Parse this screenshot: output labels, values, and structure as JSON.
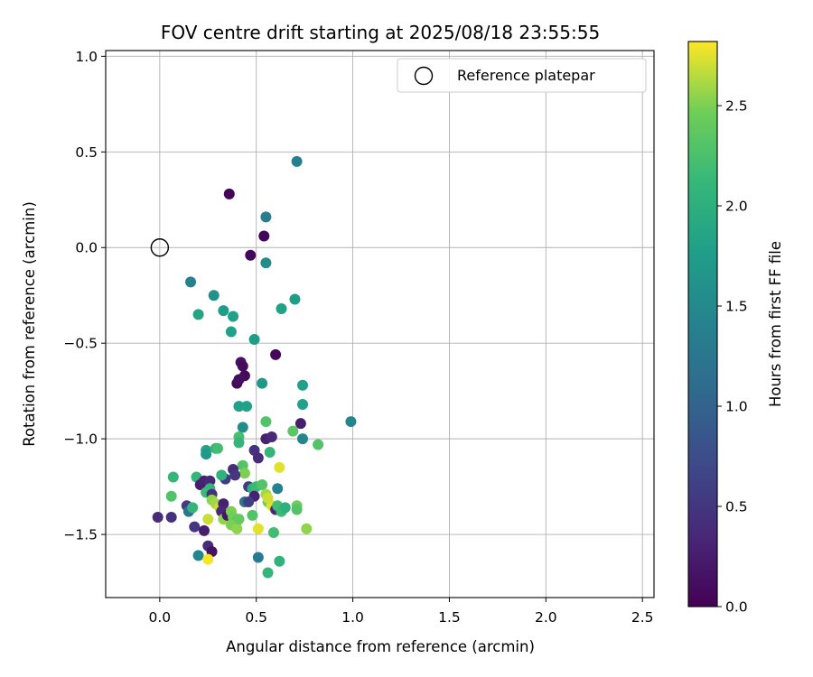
{
  "chart_data": {
    "type": "scatter",
    "title": "FOV centre drift starting at 2025/08/18 23:55:55",
    "xlabel": "Angular distance from reference (arcmin)",
    "ylabel": "Rotation from reference (arcmin)",
    "xlim": [
      -0.28,
      2.56
    ],
    "ylim": [
      -1.83,
      1.03
    ],
    "xticks": [
      0.0,
      0.5,
      1.0,
      1.5,
      2.0,
      2.5
    ],
    "xtick_labels": [
      "0.0",
      "0.5",
      "1.0",
      "1.5",
      "2.0",
      "2.5"
    ],
    "yticks": [
      1.0,
      0.5,
      0.0,
      -0.5,
      -1.0,
      -1.5
    ],
    "ytick_labels": [
      "1.0",
      "0.5",
      "0.0",
      "−0.5",
      "−1.0",
      "−1.5"
    ],
    "grid": true,
    "legend": {
      "placement": "top-right",
      "entries": [
        "Reference platepar"
      ]
    },
    "reference_point": {
      "x": 0.0,
      "y": 0.0,
      "label": "Reference platepar"
    },
    "colorbar": {
      "label": "Hours from first FF file",
      "range": [
        0.0,
        2.82
      ],
      "ticks": [
        0.0,
        0.5,
        1.0,
        1.5,
        2.0,
        2.5
      ],
      "tick_labels": [
        "0.0",
        "0.5",
        "1.0",
        "1.5",
        "2.0",
        "2.5"
      ],
      "colormap": "viridis"
    },
    "points": [
      {
        "x": 0.36,
        "y": 0.28,
        "h": 0.03
      },
      {
        "x": 0.54,
        "y": 0.06,
        "h": 0.05
      },
      {
        "x": 0.47,
        "y": -0.04,
        "h": 0.05
      },
      {
        "x": 0.42,
        "y": -0.6,
        "h": 0.15
      },
      {
        "x": 0.43,
        "y": -0.62,
        "h": 0.1
      },
      {
        "x": 0.6,
        "y": -0.56,
        "h": 0.05
      },
      {
        "x": 0.44,
        "y": -0.67,
        "h": 0.08
      },
      {
        "x": 0.4,
        "y": -0.71,
        "h": 0.05
      },
      {
        "x": 0.41,
        "y": -0.69,
        "h": 0.12
      },
      {
        "x": 0.71,
        "y": 0.45,
        "h": 1.4
      },
      {
        "x": 0.55,
        "y": 0.16,
        "h": 1.35
      },
      {
        "x": 0.55,
        "y": -0.08,
        "h": 1.55
      },
      {
        "x": 0.16,
        "y": -0.18,
        "h": 1.4
      },
      {
        "x": 0.28,
        "y": -0.25,
        "h": 1.6
      },
      {
        "x": 0.33,
        "y": -0.33,
        "h": 1.75
      },
      {
        "x": 0.38,
        "y": -0.36,
        "h": 1.8
      },
      {
        "x": 0.37,
        "y": -0.44,
        "h": 1.8
      },
      {
        "x": 0.2,
        "y": -0.35,
        "h": 1.85
      },
      {
        "x": 0.7,
        "y": -0.27,
        "h": 1.75
      },
      {
        "x": 0.63,
        "y": -0.32,
        "h": 1.8
      },
      {
        "x": 0.49,
        "y": -0.48,
        "h": 1.75
      },
      {
        "x": 0.53,
        "y": -0.71,
        "h": 1.7
      },
      {
        "x": 0.74,
        "y": -0.72,
        "h": 1.8
      },
      {
        "x": 0.74,
        "y": -0.82,
        "h": 1.8
      },
      {
        "x": 0.41,
        "y": -0.83,
        "h": 1.8
      },
      {
        "x": 0.45,
        "y": -0.83,
        "h": 1.8
      },
      {
        "x": 0.99,
        "y": -0.91,
        "h": 1.45
      },
      {
        "x": 0.73,
        "y": -0.92,
        "h": 0.25
      },
      {
        "x": 0.43,
        "y": -0.94,
        "h": 1.55
      },
      {
        "x": 0.55,
        "y": -0.91,
        "h": 2.3
      },
      {
        "x": 0.69,
        "y": -0.96,
        "h": 2.35
      },
      {
        "x": 0.74,
        "y": -1.0,
        "h": 1.45
      },
      {
        "x": 0.82,
        "y": -1.03,
        "h": 2.3
      },
      {
        "x": 0.55,
        "y": -1.0,
        "h": 0.3
      },
      {
        "x": 0.58,
        "y": -0.99,
        "h": 0.35
      },
      {
        "x": 0.41,
        "y": -0.99,
        "h": 2.25
      },
      {
        "x": 0.41,
        "y": -1.02,
        "h": 2.1
      },
      {
        "x": 0.24,
        "y": -1.06,
        "h": 1.85
      },
      {
        "x": 0.24,
        "y": -1.08,
        "h": 1.7
      },
      {
        "x": 0.29,
        "y": -1.05,
        "h": 2.05
      },
      {
        "x": 0.3,
        "y": -1.05,
        "h": 2.2
      },
      {
        "x": 0.49,
        "y": -1.06,
        "h": 0.45
      },
      {
        "x": 0.51,
        "y": -1.1,
        "h": 0.4
      },
      {
        "x": 0.57,
        "y": -1.07,
        "h": 2.1
      },
      {
        "x": 0.62,
        "y": -1.15,
        "h": 2.75
      },
      {
        "x": 0.43,
        "y": -1.14,
        "h": 2.3
      },
      {
        "x": 0.44,
        "y": -1.18,
        "h": 2.5
      },
      {
        "x": 0.38,
        "y": -1.16,
        "h": 0.4
      },
      {
        "x": 0.39,
        "y": -1.19,
        "h": 0.5
      },
      {
        "x": 0.34,
        "y": -1.21,
        "h": 0.55
      },
      {
        "x": 0.32,
        "y": -1.19,
        "h": 2.05
      },
      {
        "x": 0.07,
        "y": -1.2,
        "h": 2.1
      },
      {
        "x": 0.19,
        "y": -1.2,
        "h": 2.1
      },
      {
        "x": 0.21,
        "y": -1.24,
        "h": 0.25
      },
      {
        "x": 0.23,
        "y": -1.22,
        "h": 0.3
      },
      {
        "x": 0.26,
        "y": -1.22,
        "h": 0.35
      },
      {
        "x": 0.26,
        "y": -1.26,
        "h": 2.1
      },
      {
        "x": 0.24,
        "y": -1.28,
        "h": 2.15
      },
      {
        "x": 0.27,
        "y": -1.29,
        "h": 0.45
      },
      {
        "x": 0.46,
        "y": -1.25,
        "h": 0.55
      },
      {
        "x": 0.48,
        "y": -1.26,
        "h": 2.05
      },
      {
        "x": 0.5,
        "y": -1.25,
        "h": 2.15
      },
      {
        "x": 0.53,
        "y": -1.24,
        "h": 2.3
      },
      {
        "x": 0.61,
        "y": -1.26,
        "h": 1.4
      },
      {
        "x": 0.55,
        "y": -1.29,
        "h": 2.6
      },
      {
        "x": 0.49,
        "y": -1.3,
        "h": 0.3
      },
      {
        "x": 0.56,
        "y": -1.33,
        "h": 2.45
      },
      {
        "x": 0.58,
        "y": -1.35,
        "h": 2.75
      },
      {
        "x": 0.56,
        "y": -1.31,
        "h": 2.7
      },
      {
        "x": 0.06,
        "y": -1.3,
        "h": 2.3
      },
      {
        "x": 0.14,
        "y": -1.35,
        "h": 0.55
      },
      {
        "x": 0.15,
        "y": -1.38,
        "h": 1.25
      },
      {
        "x": 0.17,
        "y": -1.36,
        "h": 2.1
      },
      {
        "x": 0.27,
        "y": -1.32,
        "h": 2.55
      },
      {
        "x": 0.29,
        "y": -1.34,
        "h": 2.6
      },
      {
        "x": 0.31,
        "y": -1.36,
        "h": 2.7
      },
      {
        "x": 0.33,
        "y": -1.34,
        "h": 0.3
      },
      {
        "x": 0.32,
        "y": -1.38,
        "h": 0.35
      },
      {
        "x": 0.33,
        "y": -1.42,
        "h": 2.55
      },
      {
        "x": 0.35,
        "y": -1.4,
        "h": 0.2
      },
      {
        "x": 0.37,
        "y": -1.38,
        "h": 2.5
      },
      {
        "x": 0.38,
        "y": -1.41,
        "h": 2.45
      },
      {
        "x": 0.4,
        "y": -1.43,
        "h": 2.3
      },
      {
        "x": 0.44,
        "y": -1.33,
        "h": 1.2
      },
      {
        "x": 0.46,
        "y": -1.33,
        "h": 0.6
      },
      {
        "x": 0.6,
        "y": -1.37,
        "h": 0.35
      },
      {
        "x": 0.61,
        "y": -1.35,
        "h": 2.2
      },
      {
        "x": 0.63,
        "y": -1.38,
        "h": 2.15
      },
      {
        "x": 0.65,
        "y": -1.36,
        "h": 2.0
      },
      {
        "x": 0.71,
        "y": -1.35,
        "h": 2.45
      },
      {
        "x": 0.71,
        "y": -1.37,
        "h": 2.3
      },
      {
        "x": -0.01,
        "y": -1.41,
        "h": 0.4
      },
      {
        "x": 0.06,
        "y": -1.41,
        "h": 0.45
      },
      {
        "x": 0.25,
        "y": -1.42,
        "h": 2.7
      },
      {
        "x": 0.37,
        "y": -1.45,
        "h": 2.5
      },
      {
        "x": 0.4,
        "y": -1.47,
        "h": 2.55
      },
      {
        "x": 0.48,
        "y": -1.4,
        "h": 2.3
      },
      {
        "x": 0.41,
        "y": -1.42,
        "h": 2.4
      },
      {
        "x": 0.18,
        "y": -1.46,
        "h": 0.5
      },
      {
        "x": 0.23,
        "y": -1.48,
        "h": 0.25
      },
      {
        "x": 0.51,
        "y": -1.47,
        "h": 2.75
      },
      {
        "x": 0.59,
        "y": -1.49,
        "h": 2.2
      },
      {
        "x": 0.76,
        "y": -1.47,
        "h": 2.55
      },
      {
        "x": 0.25,
        "y": -1.56,
        "h": 0.4
      },
      {
        "x": 0.27,
        "y": -1.59,
        "h": 0.15
      },
      {
        "x": 0.2,
        "y": -1.61,
        "h": 1.45
      },
      {
        "x": 0.25,
        "y": -1.63,
        "h": 2.8
      },
      {
        "x": 0.51,
        "y": -1.62,
        "h": 1.3
      },
      {
        "x": 0.62,
        "y": -1.64,
        "h": 2.05
      },
      {
        "x": 0.56,
        "y": -1.7,
        "h": 2.1
      }
    ]
  }
}
